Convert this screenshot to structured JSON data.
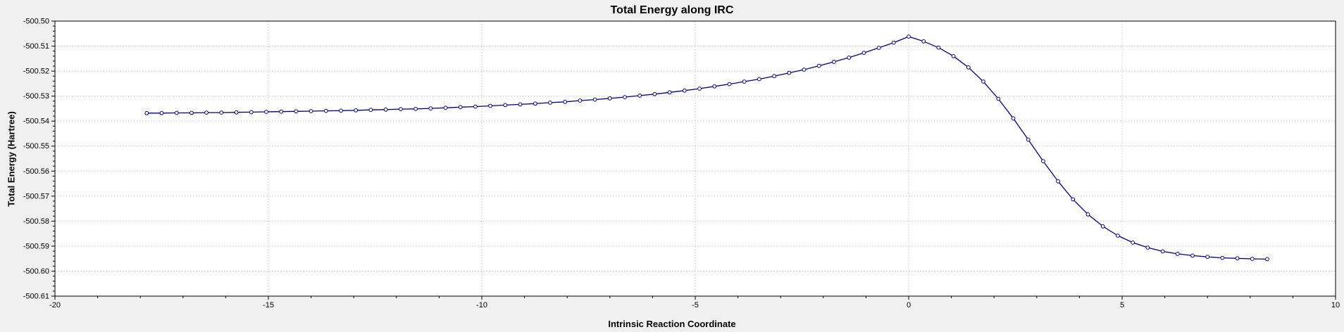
{
  "chart_data": {
    "type": "line",
    "title": "Total Energy along IRC",
    "xlabel": "Intrinsic Reaction Coordinate",
    "ylabel": "Total Energy (Hartree)",
    "xlim": [
      -20,
      10
    ],
    "ylim": [
      -500.61,
      -500.5
    ],
    "x_tick_labels": [
      "-20",
      "-15",
      "-10",
      "-5",
      "0",
      "5",
      "10"
    ],
    "y_tick_labels": [
      "-500.50",
      "-500.51",
      "-500.52",
      "-500.53",
      "-500.54",
      "-500.55",
      "-500.56",
      "-500.57",
      "-500.58",
      "-500.59",
      "-500.60",
      "-500.61"
    ],
    "grid": true,
    "legend": "none",
    "marker": "open-circle",
    "line_color": "#00008b",
    "grid_color": "#c8c8c8",
    "plot_bg_color": "#ffffff",
    "page_bg_color": "#f0f0f0",
    "series": [
      {
        "name": "Total Energy",
        "points": [
          [
            -17.85,
            -500.5368
          ],
          [
            -17.5,
            -500.5368
          ],
          [
            -17.15,
            -500.5367
          ],
          [
            -16.8,
            -500.5367
          ],
          [
            -16.45,
            -500.5366
          ],
          [
            -16.1,
            -500.5366
          ],
          [
            -15.75,
            -500.5365
          ],
          [
            -15.4,
            -500.5364
          ],
          [
            -15.05,
            -500.5363
          ],
          [
            -14.7,
            -500.5362
          ],
          [
            -14.35,
            -500.5361
          ],
          [
            -14.0,
            -500.536
          ],
          [
            -13.65,
            -500.5359
          ],
          [
            -13.3,
            -500.5358
          ],
          [
            -12.95,
            -500.5357
          ],
          [
            -12.6,
            -500.5355
          ],
          [
            -12.25,
            -500.5354
          ],
          [
            -11.9,
            -500.5352
          ],
          [
            -11.55,
            -500.5351
          ],
          [
            -11.2,
            -500.5349
          ],
          [
            -10.85,
            -500.5347
          ],
          [
            -10.5,
            -500.5344
          ],
          [
            -10.15,
            -500.5342
          ],
          [
            -9.8,
            -500.5339
          ],
          [
            -9.45,
            -500.5336
          ],
          [
            -9.1,
            -500.5333
          ],
          [
            -8.75,
            -500.533
          ],
          [
            -8.4,
            -500.5326
          ],
          [
            -8.05,
            -500.5323
          ],
          [
            -7.7,
            -500.5318
          ],
          [
            -7.35,
            -500.5314
          ],
          [
            -7.0,
            -500.5309
          ],
          [
            -6.65,
            -500.5304
          ],
          [
            -6.3,
            -500.5298
          ],
          [
            -5.95,
            -500.5292
          ],
          [
            -5.6,
            -500.5285
          ],
          [
            -5.25,
            -500.5278
          ],
          [
            -4.9,
            -500.527
          ],
          [
            -4.55,
            -500.5261
          ],
          [
            -4.2,
            -500.5252
          ],
          [
            -3.85,
            -500.5242
          ],
          [
            -3.5,
            -500.5232
          ],
          [
            -3.15,
            -500.522
          ],
          [
            -2.8,
            -500.5207
          ],
          [
            -2.45,
            -500.5194
          ],
          [
            -2.1,
            -500.5179
          ],
          [
            -1.75,
            -500.5163
          ],
          [
            -1.4,
            -500.5146
          ],
          [
            -1.05,
            -500.5127
          ],
          [
            -0.7,
            -500.5107
          ],
          [
            -0.35,
            -500.5086
          ],
          [
            0.0,
            -500.5062
          ],
          [
            0.35,
            -500.5081
          ],
          [
            0.7,
            -500.5106
          ],
          [
            1.05,
            -500.514
          ],
          [
            1.4,
            -500.5185
          ],
          [
            1.75,
            -500.5242
          ],
          [
            2.1,
            -500.5311
          ],
          [
            2.45,
            -500.5389
          ],
          [
            2.8,
            -500.5474
          ],
          [
            3.15,
            -500.556
          ],
          [
            3.5,
            -500.5641
          ],
          [
            3.85,
            -500.5713
          ],
          [
            4.2,
            -500.5773
          ],
          [
            4.55,
            -500.5821
          ],
          [
            4.9,
            -500.5858
          ],
          [
            5.25,
            -500.5886
          ],
          [
            5.6,
            -500.5906
          ],
          [
            5.95,
            -500.5921
          ],
          [
            6.3,
            -500.5931
          ],
          [
            6.65,
            -500.5938
          ],
          [
            7.0,
            -500.5943
          ],
          [
            7.35,
            -500.5947
          ],
          [
            7.7,
            -500.5949
          ],
          [
            8.05,
            -500.5951
          ],
          [
            8.4,
            -500.5952
          ]
        ]
      }
    ]
  }
}
